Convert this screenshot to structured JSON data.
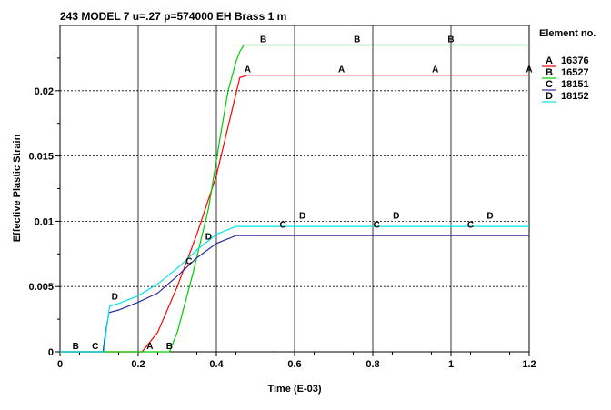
{
  "chart_data": {
    "type": "line",
    "title": "243 MODEL 7 u=.27 p=574000 EH Brass 1 m",
    "xlabel": "Time (E-03)",
    "ylabel": "Effective Plastic Strain",
    "xlim": [
      0,
      1.2
    ],
    "ylim": [
      0,
      0.025
    ],
    "x_ticks": [
      0,
      0.2,
      0.4,
      0.6,
      0.8,
      1,
      1.2
    ],
    "x_tick_labels": [
      "0",
      "0.2",
      "0.4",
      "0.6",
      "0.8",
      "1",
      "1.2"
    ],
    "y_ticks": [
      0,
      0.005,
      0.01,
      0.015,
      0.02
    ],
    "y_tick_labels": [
      "0",
      "0.005",
      "0.01",
      "0.015",
      "0.02"
    ],
    "grid": true,
    "legend_title": "Element no.",
    "legend_position": "right",
    "series": [
      {
        "name": "16376",
        "letter": "A",
        "color": "#ff0000",
        "points": [
          [
            0,
            0
          ],
          [
            0.21,
            0
          ],
          [
            0.25,
            0.0015
          ],
          [
            0.3,
            0.005
          ],
          [
            0.35,
            0.009
          ],
          [
            0.4,
            0.0135
          ],
          [
            0.44,
            0.0185
          ],
          [
            0.46,
            0.021
          ],
          [
            0.48,
            0.0212
          ],
          [
            1.2,
            0.0212
          ]
        ],
        "markers": [
          [
            0.23,
            0.0
          ],
          [
            0.48,
            0.0212
          ],
          [
            0.72,
            0.0212
          ],
          [
            0.96,
            0.0212
          ],
          [
            1.2,
            0.0212
          ]
        ]
      },
      {
        "name": "16527",
        "letter": "B",
        "color": "#00cc00",
        "points": [
          [
            0,
            0
          ],
          [
            0.28,
            0
          ],
          [
            0.3,
            0.0015
          ],
          [
            0.34,
            0.006
          ],
          [
            0.38,
            0.011
          ],
          [
            0.41,
            0.0165
          ],
          [
            0.43,
            0.02
          ],
          [
            0.45,
            0.0222
          ],
          [
            0.46,
            0.023
          ],
          [
            0.47,
            0.0235
          ],
          [
            1.2,
            0.0235
          ]
        ],
        "markers": [
          [
            0.04,
            0.0
          ],
          [
            0.28,
            0.0
          ],
          [
            0.52,
            0.0235
          ],
          [
            0.76,
            0.0235
          ],
          [
            1.0,
            0.0235
          ]
        ]
      },
      {
        "name": "18151",
        "letter": "C",
        "color": "#2a2aa0",
        "points": [
          [
            0,
            0
          ],
          [
            0.11,
            0
          ],
          [
            0.115,
            0.0012
          ],
          [
            0.125,
            0.003
          ],
          [
            0.15,
            0.0032
          ],
          [
            0.2,
            0.0038
          ],
          [
            0.25,
            0.0045
          ],
          [
            0.3,
            0.0058
          ],
          [
            0.35,
            0.0072
          ],
          [
            0.4,
            0.0083
          ],
          [
            0.45,
            0.0089
          ],
          [
            0.5,
            0.0089
          ],
          [
            1.2,
            0.0089
          ]
        ],
        "markers": [
          [
            0.09,
            0.0
          ],
          [
            0.33,
            0.0065
          ],
          [
            0.57,
            0.0093
          ],
          [
            0.81,
            0.0093
          ],
          [
            1.05,
            0.0093
          ]
        ]
      },
      {
        "name": "18152",
        "letter": "D",
        "color": "#00e6e6",
        "points": [
          [
            0,
            0
          ],
          [
            0.112,
            0
          ],
          [
            0.118,
            0.0015
          ],
          [
            0.127,
            0.0035
          ],
          [
            0.15,
            0.0037
          ],
          [
            0.2,
            0.0043
          ],
          [
            0.25,
            0.0052
          ],
          [
            0.3,
            0.0064
          ],
          [
            0.35,
            0.0078
          ],
          [
            0.4,
            0.009
          ],
          [
            0.45,
            0.0096
          ],
          [
            0.5,
            0.0096
          ],
          [
            1.2,
            0.0096
          ]
        ],
        "markers": [
          [
            0.14,
            0.0038
          ],
          [
            0.38,
            0.0084
          ],
          [
            0.62,
            0.01
          ],
          [
            0.86,
            0.01
          ],
          [
            1.1,
            0.01
          ]
        ]
      }
    ]
  }
}
